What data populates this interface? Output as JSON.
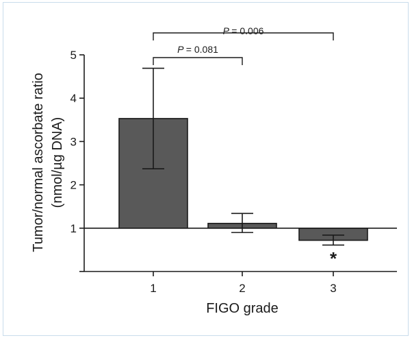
{
  "chart_data": {
    "type": "bar",
    "categories": [
      "1",
      "2",
      "3"
    ],
    "values": [
      3.53,
      1.11,
      0.72
    ],
    "error_upper": [
      4.69,
      1.34,
      0.84
    ],
    "error_lower": [
      2.37,
      0.9,
      0.61
    ],
    "baseline": 1,
    "xlabel": "FIGO grade",
    "ylabel_line1": "Tumor/normal ascorbate ratio",
    "ylabel_line2": "(nmol/µg DNA)",
    "ylim": [
      0,
      5
    ],
    "yticks": [
      "1",
      "2",
      "3",
      "4",
      "5"
    ],
    "grid": false,
    "bar_color": "#595959",
    "significance": [
      {
        "label": "P = 0.081",
        "from": "1",
        "to": "2"
      },
      {
        "label": "P = 0.006",
        "from": "1",
        "to": "3"
      }
    ],
    "annotations": [
      {
        "category": "3",
        "text": "*"
      }
    ]
  }
}
